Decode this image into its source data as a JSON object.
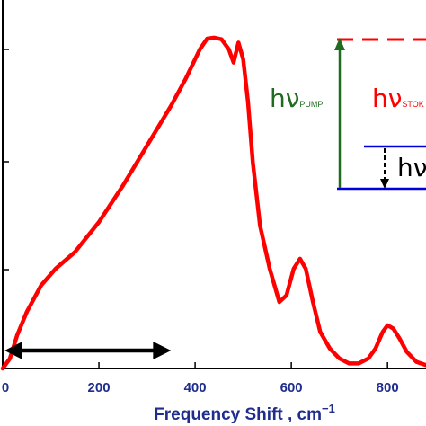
{
  "chart_data": {
    "type": "line",
    "xlabel": "Frequency Shift , cm",
    "xlabel_superscript": "−1",
    "x_ticks": [
      0,
      200,
      400,
      600,
      800
    ],
    "x_tick_labels": [
      "0",
      "200",
      "400",
      "600",
      "800"
    ],
    "xlim": [
      0,
      880
    ],
    "ylim": [
      0,
      1
    ],
    "grid": false,
    "series": [
      {
        "color": "#ff0000",
        "x": [
          0,
          15,
          30,
          50,
          80,
          110,
          150,
          200,
          250,
          300,
          350,
          380,
          410,
          425,
          440,
          455,
          470,
          480,
          490,
          500,
          510,
          520,
          535,
          555,
          575,
          590,
          605,
          618,
          630,
          645,
          660,
          680,
          700,
          720,
          740,
          760,
          775,
          790,
          800,
          812,
          825,
          840,
          860,
          880
        ],
        "y": [
          0.0,
          0.03,
          0.1,
          0.17,
          0.25,
          0.3,
          0.35,
          0.44,
          0.55,
          0.67,
          0.79,
          0.87,
          0.96,
          0.992,
          0.995,
          0.99,
          0.96,
          0.92,
          0.98,
          0.93,
          0.8,
          0.62,
          0.43,
          0.3,
          0.2,
          0.22,
          0.3,
          0.33,
          0.3,
          0.2,
          0.11,
          0.06,
          0.03,
          0.015,
          0.015,
          0.03,
          0.06,
          0.11,
          0.13,
          0.12,
          0.09,
          0.05,
          0.02,
          0.01
        ]
      }
    ],
    "range_arrow": {
      "from": 0,
      "to": 350,
      "color": "#000000"
    },
    "energy_diagram": {
      "pump_label": "hν",
      "pump_subscript": "PUMP",
      "pump_color": "#1f6b1f",
      "stokes_label": "hν",
      "stokes_subscript": "STOK",
      "stokes_color": "#ff0000",
      "phonon_label": "hν",
      "phonon_color": "#000000",
      "level_color": "#0000dd",
      "virtual_level_color": "#ff0000"
    }
  }
}
